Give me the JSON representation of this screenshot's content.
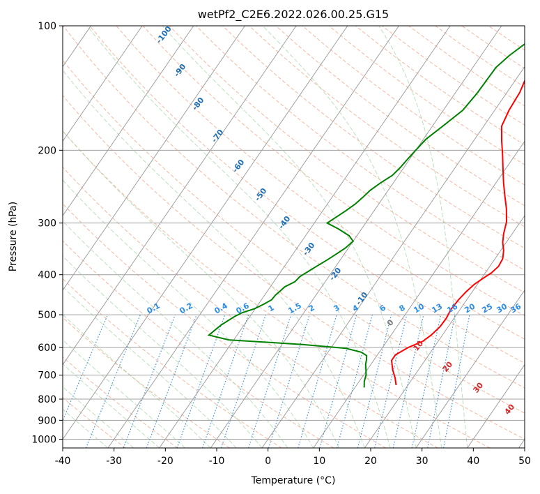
{
  "chart_data": {
    "type": "line",
    "title": "wetPf2_C2E6.2022.026.00.25.G15",
    "xlabel": "Temperature (°C)",
    "ylabel": "Pressure (hPa)",
    "xlim": [
      -40,
      50
    ],
    "ylim": [
      1050,
      100
    ],
    "y_scale": "log",
    "grid": true,
    "x_ticks": [
      "-40",
      "-30",
      "-20",
      "-10",
      "0",
      "10",
      "20",
      "30",
      "40",
      "50"
    ],
    "y_ticks": [
      "100",
      "200",
      "300",
      "400",
      "500",
      "600",
      "700",
      "800",
      "900",
      "1000"
    ],
    "series": [
      {
        "color": "#ff0000",
        "points": [
          [
            0.4,
            100
          ],
          [
            0.8,
            115
          ],
          [
            1.5,
            130
          ],
          [
            2.5,
            145
          ],
          [
            2.8,
            160
          ],
          [
            3.5,
            175
          ],
          [
            5.5,
            190
          ],
          [
            7.5,
            205
          ],
          [
            9.5,
            222
          ],
          [
            11.5,
            240
          ],
          [
            13.5,
            258
          ],
          [
            15.5,
            277
          ],
          [
            17.3,
            298
          ],
          [
            18.3,
            318
          ],
          [
            19.3,
            334
          ],
          [
            20.6,
            350
          ],
          [
            21.5,
            366
          ],
          [
            21.7,
            382
          ],
          [
            21.2,
            396
          ],
          [
            20.3,
            408
          ],
          [
            19.4,
            422
          ],
          [
            18.8,
            440
          ],
          [
            18.4,
            460
          ],
          [
            18.2,
            485
          ],
          [
            18.5,
            510
          ],
          [
            18.4,
            535
          ],
          [
            17.8,
            560
          ],
          [
            17.0,
            580
          ],
          [
            15.0,
            600
          ],
          [
            13.5,
            625
          ],
          [
            13.5,
            645
          ],
          [
            15.0,
            680
          ],
          [
            16.5,
            710
          ],
          [
            17.7,
            740
          ]
        ]
      },
      {
        "color": "#008000",
        "points": [
          [
            -0.8,
            100
          ],
          [
            -2.5,
            108
          ],
          [
            -4.5,
            118
          ],
          [
            -5.5,
            126
          ],
          [
            -5.7,
            145
          ],
          [
            -6.2,
            160
          ],
          [
            -8.0,
            175
          ],
          [
            -9.5,
            188
          ],
          [
            -10.0,
            200
          ],
          [
            -10.4,
            210
          ],
          [
            -10.7,
            220
          ],
          [
            -11.2,
            230
          ],
          [
            -12.5,
            240
          ],
          [
            -13.5,
            250
          ],
          [
            -14.0,
            260
          ],
          [
            -14.6,
            270
          ],
          [
            -15.5,
            280
          ],
          [
            -16.5,
            290
          ],
          [
            -17.5,
            300
          ],
          [
            -14.5,
            310
          ],
          [
            -11.5,
            322
          ],
          [
            -10.0,
            332
          ],
          [
            -10.6,
            345
          ],
          [
            -11.5,
            356
          ],
          [
            -12.5,
            368
          ],
          [
            -13.7,
            381
          ],
          [
            -14.7,
            393
          ],
          [
            -15.6,
            404
          ],
          [
            -15.9,
            416
          ],
          [
            -17.2,
            428
          ],
          [
            -17.5,
            438
          ],
          [
            -17.9,
            448
          ],
          [
            -18.0,
            460
          ],
          [
            -19.0,
            472
          ],
          [
            -20.2,
            484
          ],
          [
            -22.0,
            494
          ],
          [
            -23.0,
            505
          ],
          [
            -24.5,
            530
          ],
          [
            -25.5,
            560
          ],
          [
            -21.0,
            575
          ],
          [
            -6.0,
            590
          ],
          [
            3.0,
            603
          ],
          [
            6.5,
            616
          ],
          [
            8.0,
            628
          ],
          [
            8.5,
            642
          ],
          [
            9.0,
            660
          ],
          [
            9.8,
            680
          ],
          [
            10.5,
            700
          ],
          [
            11.0,
            725
          ],
          [
            11.8,
            750
          ]
        ]
      }
    ],
    "dry_adiabat_labels": [
      "-100",
      "-90",
      "-80",
      "-70",
      "-60",
      "-50",
      "-40",
      "-30",
      "-20",
      "-10"
    ],
    "moist_adiabat_labels": [
      "0",
      "10",
      "20",
      "30",
      "40"
    ],
    "mixing_ratio_labels": [
      "0.1",
      "0.2",
      "0.4",
      "0.6",
      "1",
      "1.5",
      "2",
      "3",
      "4",
      "6",
      "8",
      "10",
      "13",
      "16",
      "20",
      "25",
      "30",
      "36"
    ]
  }
}
